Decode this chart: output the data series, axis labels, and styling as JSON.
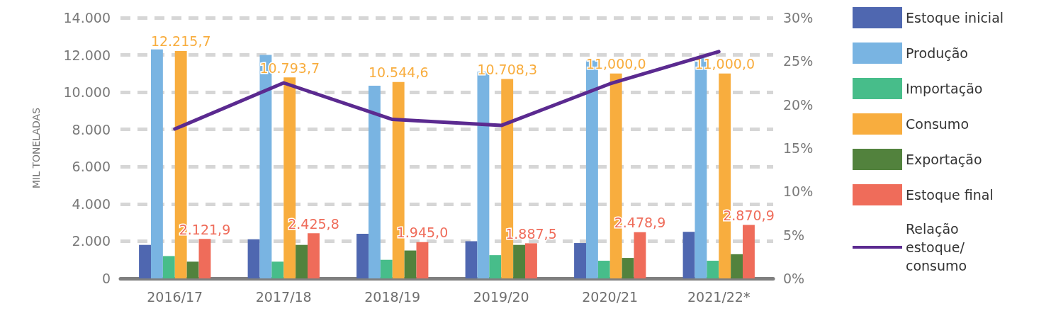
{
  "chart_data": {
    "type": "bar",
    "ylabel": "MIL TONELADAS",
    "categories": [
      "2016/17",
      "2017/18",
      "2018/19",
      "2019/20",
      "2020/21",
      "2021/22*"
    ],
    "series": [
      {
        "name": "Estoque inicial",
        "color": "#4f67b0",
        "values": [
          1800,
          2100,
          2400,
          2000,
          1900,
          2500
        ]
      },
      {
        "name": "Produção",
        "color": "#79b4e2",
        "values": [
          12300,
          12000,
          10350,
          11100,
          11700,
          11850
        ]
      },
      {
        "name": "Importação",
        "color": "#47bd8a",
        "values": [
          1200,
          900,
          1000,
          1250,
          950,
          950
        ]
      },
      {
        "name": "Consumo",
        "color": "#f8ad3e",
        "values": [
          12215.7,
          10793.7,
          10544.6,
          10708.3,
          11000.0,
          11000.0
        ],
        "value_labels": [
          "12.215,7",
          "10.793,7",
          "10.544,6",
          "10.708,3",
          "11,000,0",
          "11,000,0"
        ]
      },
      {
        "name": "Exportação",
        "color": "#52823d",
        "values": [
          900,
          1800,
          1500,
          1800,
          1100,
          1300
        ]
      },
      {
        "name": "Estoque final",
        "color": "#ef6c5a",
        "values": [
          2121.9,
          2425.8,
          1945.0,
          1887.5,
          2478.9,
          2870.9
        ],
        "value_labels": [
          "2.121,9",
          "2.425,8",
          "1.945,0",
          "1.887,5",
          "2.478,9",
          "2.870,9"
        ]
      },
      {
        "name": "Relação estoque/consumo",
        "type": "line",
        "axis": "y2",
        "color": "#5b2a90",
        "values": [
          17.2,
          22.5,
          18.3,
          17.6,
          22.4,
          26.1
        ]
      }
    ],
    "ylim": [
      0,
      14000
    ],
    "yticks": [
      {
        "value": 0,
        "label": "0"
      },
      {
        "value": 2000,
        "label": "2.000"
      },
      {
        "value": 4000,
        "label": "4.000"
      },
      {
        "value": 6000,
        "label": "6.000"
      },
      {
        "value": 8000,
        "label": "8.000"
      },
      {
        "value": 10000,
        "label": "10.000"
      },
      {
        "value": 12000,
        "label": "12.000"
      },
      {
        "value": 14000,
        "label": "14.000"
      }
    ],
    "y2lim": [
      0,
      30
    ],
    "y2ticks": [
      {
        "value": 0,
        "label": "0%"
      },
      {
        "value": 5,
        "label": "5%"
      },
      {
        "value": 10,
        "label": "10%"
      },
      {
        "value": 15,
        "label": "15%"
      },
      {
        "value": 20,
        "label": "20%"
      },
      {
        "value": 25,
        "label": "25%"
      },
      {
        "value": 30,
        "label": "30%"
      }
    ],
    "grid": "y",
    "legend": "right",
    "marker": "none",
    "line_style": "solid"
  }
}
